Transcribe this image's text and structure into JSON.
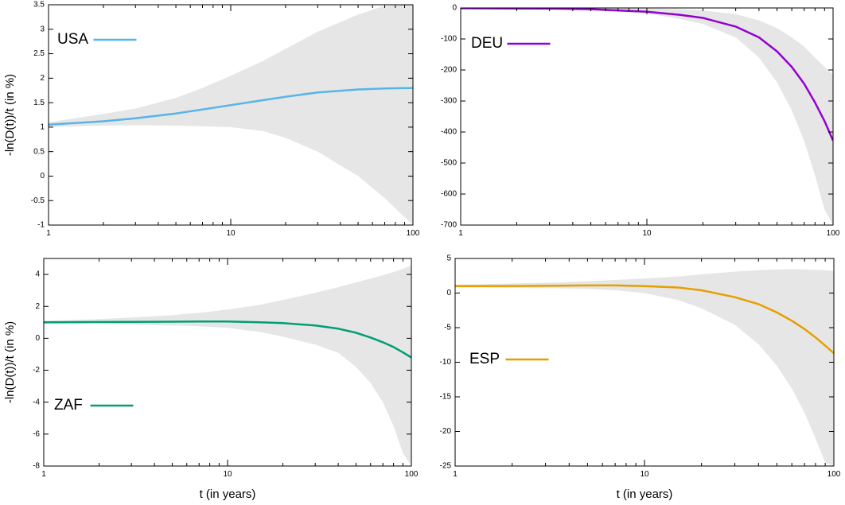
{
  "chart_data": [
    {
      "type": "line",
      "xscale": "log",
      "xlim": [
        1,
        100
      ],
      "ylim": [
        -1,
        3.5
      ],
      "xticks": [
        "1",
        "10",
        "100"
      ],
      "yticks": [
        "-1",
        "-0.5",
        "0",
        "0.5",
        "1",
        "1.5",
        "2",
        "2.5",
        "3",
        "3.5"
      ],
      "ylabel": "-ln(D(t))/t (in %)",
      "xlabel": "",
      "grid": false,
      "legend_position": "top-left",
      "series": [
        {
          "name": "USA",
          "color": "#56b4e9",
          "x": [
            1,
            2,
            3,
            5,
            7,
            10,
            15,
            20,
            30,
            50,
            70,
            100
          ],
          "y": [
            1.05,
            1.12,
            1.18,
            1.28,
            1.36,
            1.45,
            1.55,
            1.62,
            1.71,
            1.77,
            1.79,
            1.8
          ],
          "band_upper": [
            1.1,
            1.27,
            1.38,
            1.6,
            1.8,
            2.05,
            2.35,
            2.6,
            2.95,
            3.3,
            3.48,
            3.5
          ],
          "band_lower": [
            1.0,
            1.03,
            1.04,
            1.03,
            1.02,
            1.0,
            0.92,
            0.78,
            0.5,
            0.0,
            -0.45,
            -1.0
          ]
        }
      ]
    },
    {
      "type": "line",
      "xscale": "log",
      "xlim": [
        1,
        100
      ],
      "ylim": [
        -700,
        0
      ],
      "xticks": [
        "1",
        "10",
        "100"
      ],
      "yticks": [
        "-700",
        "-600",
        "-500",
        "-400",
        "-300",
        "-200",
        "-100",
        "0"
      ],
      "ylabel": "",
      "xlabel": "",
      "grid": false,
      "legend_position": "top-left",
      "series": [
        {
          "name": "DEU",
          "color": "#9400d3",
          "x": [
            1,
            3,
            5,
            10,
            15,
            20,
            30,
            40,
            50,
            60,
            70,
            80,
            90,
            100
          ],
          "y": [
            -1,
            -2,
            -4,
            -12,
            -22,
            -32,
            -60,
            -95,
            -140,
            -190,
            -245,
            -305,
            -365,
            -428
          ],
          "band_upper": [
            0,
            0,
            0,
            -2,
            -4,
            -8,
            -20,
            -40,
            -65,
            -95,
            -125,
            -160,
            -190,
            -215
          ],
          "band_lower": [
            -2,
            -3,
            -6,
            -18,
            -35,
            -52,
            -95,
            -160,
            -240,
            -330,
            -430,
            -540,
            -650,
            -700
          ]
        }
      ]
    },
    {
      "type": "line",
      "xscale": "log",
      "xlim": [
        1,
        100
      ],
      "ylim": [
        -8,
        5
      ],
      "xticks": [
        "1",
        "10",
        "100"
      ],
      "yticks": [
        "-8",
        "-6",
        "-4",
        "-2",
        "0",
        "2",
        "4"
      ],
      "ylabel": "-ln(D(t))/t (in %)",
      "xlabel": "t (in years)",
      "grid": false,
      "legend_position": "bottom-left",
      "series": [
        {
          "name": "ZAF",
          "color": "#009e73",
          "x": [
            1,
            2,
            3,
            5,
            7,
            10,
            15,
            20,
            30,
            40,
            50,
            60,
            70,
            80,
            90,
            100
          ],
          "y": [
            1.0,
            1.02,
            1.03,
            1.04,
            1.05,
            1.05,
            1.0,
            0.95,
            0.8,
            0.6,
            0.35,
            0.05,
            -0.25,
            -0.55,
            -0.88,
            -1.2
          ],
          "band_upper": [
            1.1,
            1.2,
            1.3,
            1.45,
            1.6,
            1.8,
            2.1,
            2.4,
            2.85,
            3.2,
            3.5,
            3.75,
            3.95,
            4.15,
            4.35,
            4.55
          ],
          "band_lower": [
            0.9,
            0.9,
            0.85,
            0.8,
            0.75,
            0.65,
            0.4,
            0.1,
            -0.4,
            -0.9,
            -1.8,
            -2.8,
            -4.0,
            -5.5,
            -7.2,
            -8.0
          ]
        }
      ]
    },
    {
      "type": "line",
      "xscale": "log",
      "xlim": [
        1,
        100
      ],
      "ylim": [
        -25,
        5
      ],
      "xticks": [
        "1",
        "10",
        "100"
      ],
      "yticks": [
        "-25",
        "-20",
        "-15",
        "-10",
        "-5",
        "0",
        "5"
      ],
      "ylabel": "",
      "xlabel": "t (in years)",
      "grid": false,
      "legend_position": "center-left",
      "series": [
        {
          "name": "ESP",
          "color": "#e69f00",
          "x": [
            1,
            3,
            5,
            7,
            10,
            15,
            20,
            30,
            40,
            50,
            60,
            70,
            80,
            90,
            100
          ],
          "y": [
            1.0,
            1.05,
            1.1,
            1.1,
            1.0,
            0.8,
            0.4,
            -0.6,
            -1.6,
            -2.8,
            -4.0,
            -5.2,
            -6.4,
            -7.6,
            -8.7
          ],
          "band_upper": [
            1.2,
            1.5,
            1.7,
            1.9,
            2.1,
            2.4,
            2.7,
            3.1,
            3.3,
            3.4,
            3.45,
            3.4,
            3.35,
            3.3,
            3.2
          ],
          "band_lower": [
            0.8,
            0.7,
            0.6,
            0.4,
            0.0,
            -1.0,
            -2.2,
            -4.6,
            -7.4,
            -10.5,
            -13.8,
            -17.3,
            -21.0,
            -24.5,
            -25.0
          ]
        }
      ]
    }
  ]
}
